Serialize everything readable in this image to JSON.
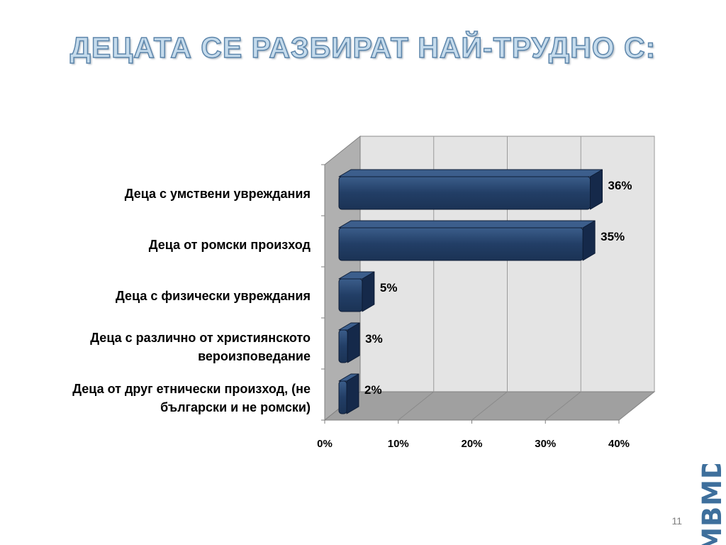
{
  "slide": {
    "title": "ДЕЦАТА СЕ РАЗБИРАТ НАЙ-ТРУДНО С:",
    "page_number": "11",
    "logo_text": "MBMD"
  },
  "colors": {
    "bar_front": "#223e66",
    "bar_top": "#3c5e8c",
    "bar_side": "#15294a",
    "back_wall": "#e4e4e4",
    "side_wall": "#b0b0b0",
    "floor": "#a0a0a0"
  },
  "chart_data": {
    "type": "bar",
    "orientation": "horizontal",
    "style": "3d",
    "categories": [
      [
        "Деца с умствени увреждания"
      ],
      [
        "Деца от ромски произход"
      ],
      [
        "Деца с физически увреждания"
      ],
      [
        "Деца с различно от християнското",
        "вероизповедание"
      ],
      [
        "Деца от друг етнически произход, (не",
        "български и не ромски)"
      ]
    ],
    "values": [
      36,
      35,
      5,
      3,
      2
    ],
    "value_labels": [
      "36%",
      "35%",
      "5%",
      "3%",
      "2%"
    ],
    "x_ticks": [
      "0%",
      "10%",
      "20%",
      "30%",
      "40%"
    ],
    "xlim": [
      0,
      40
    ],
    "grid": true,
    "legend": "none"
  }
}
